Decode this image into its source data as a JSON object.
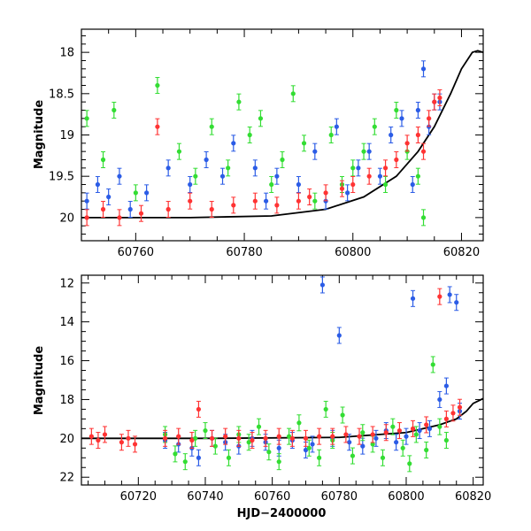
{
  "chart_data": [
    {
      "type": "scatter",
      "title": "",
      "xlabel": "",
      "ylabel": "Magnitude",
      "xlim": [
        60750,
        60824
      ],
      "ylim": [
        20.28,
        17.72
      ],
      "y_inverted": true,
      "grid": false,
      "xticks_major": [
        60760,
        60780,
        60800,
        60820
      ],
      "xticks_minor_step": 5,
      "yticks_major": [
        18,
        18.5,
        19,
        19.5,
        20
      ],
      "yticks_minor_step": 0.1,
      "model_curve": {
        "color": "#000000",
        "x": [
          60750,
          60770,
          60785,
          60795,
          60802,
          60808,
          60812,
          60815,
          60818,
          60820,
          60822,
          60823,
          60824
        ],
        "y": [
          20.0,
          20.0,
          19.98,
          19.9,
          19.75,
          19.5,
          19.2,
          18.9,
          18.5,
          18.2,
          18.0,
          17.98,
          18.0
        ]
      },
      "series": [
        {
          "color": "#2b5ce6",
          "points": [
            [
              60751,
              19.8
            ],
            [
              60753,
              19.6
            ],
            [
              60755,
              19.75
            ],
            [
              60757,
              19.5
            ],
            [
              60759,
              19.9
            ],
            [
              60762,
              19.7
            ],
            [
              60766,
              19.4
            ],
            [
              60770,
              19.6
            ],
            [
              60773,
              19.3
            ],
            [
              60776,
              19.5
            ],
            [
              60778,
              19.1
            ],
            [
              60782,
              19.4
            ],
            [
              60784,
              19.8
            ],
            [
              60786,
              19.5
            ],
            [
              60790,
              19.6
            ],
            [
              60793,
              19.2
            ],
            [
              60795,
              19.8
            ],
            [
              60797,
              18.9
            ],
            [
              60799,
              19.7
            ],
            [
              60801,
              19.4
            ],
            [
              60803,
              19.2
            ],
            [
              60805,
              19.5
            ],
            [
              60807,
              19.0
            ],
            [
              60809,
              18.8
            ],
            [
              60811,
              19.6
            ],
            [
              60812,
              18.7
            ],
            [
              60813,
              18.2
            ],
            [
              60814,
              18.9
            ],
            [
              60815,
              18.6
            ],
            [
              60816,
              18.6
            ]
          ]
        },
        {
          "color": "#33dd33",
          "points": [
            [
              60751,
              18.8
            ],
            [
              60754,
              19.3
            ],
            [
              60756,
              18.7
            ],
            [
              60760,
              19.7
            ],
            [
              60764,
              18.4
            ],
            [
              60768,
              19.2
            ],
            [
              60771,
              19.5
            ],
            [
              60774,
              18.9
            ],
            [
              60777,
              19.4
            ],
            [
              60779,
              18.6
            ],
            [
              60781,
              19.0
            ],
            [
              60783,
              18.8
            ],
            [
              60785,
              19.6
            ],
            [
              60787,
              19.3
            ],
            [
              60789,
              18.5
            ],
            [
              60791,
              19.1
            ],
            [
              60793,
              19.8
            ],
            [
              60796,
              19.0
            ],
            [
              60798,
              19.6
            ],
            [
              60800,
              19.4
            ],
            [
              60802,
              19.2
            ],
            [
              60804,
              18.9
            ],
            [
              60806,
              19.6
            ],
            [
              60808,
              18.7
            ],
            [
              60810,
              19.2
            ],
            [
              60812,
              19.5
            ],
            [
              60813,
              20.0
            ]
          ]
        },
        {
          "color": "#ff3333",
          "points": [
            [
              60751,
              20.0
            ],
            [
              60754,
              19.9
            ],
            [
              60757,
              20.0
            ],
            [
              60761,
              19.95
            ],
            [
              60764,
              18.9
            ],
            [
              60766,
              19.9
            ],
            [
              60770,
              19.8
            ],
            [
              60774,
              19.9
            ],
            [
              60778,
              19.85
            ],
            [
              60782,
              19.8
            ],
            [
              60786,
              19.85
            ],
            [
              60790,
              19.8
            ],
            [
              60792,
              19.75
            ],
            [
              60795,
              19.7
            ],
            [
              60798,
              19.65
            ],
            [
              60800,
              19.6
            ],
            [
              60803,
              19.5
            ],
            [
              60806,
              19.4
            ],
            [
              60808,
              19.3
            ],
            [
              60810,
              19.1
            ],
            [
              60812,
              19.0
            ],
            [
              60813,
              19.2
            ],
            [
              60814,
              18.8
            ],
            [
              60815,
              18.6
            ],
            [
              60816,
              18.55
            ]
          ]
        }
      ]
    },
    {
      "type": "scatter",
      "title": "",
      "xlabel": "HJD−2400000",
      "ylabel": "Magnitude",
      "xlim": [
        60703,
        60823
      ],
      "ylim": [
        22.4,
        11.6
      ],
      "y_inverted": true,
      "grid": false,
      "xticks_major": [
        60720,
        60740,
        60760,
        60780,
        60800,
        60820
      ],
      "xticks_minor_step": 5,
      "yticks_major": [
        12,
        14,
        16,
        18,
        20,
        22
      ],
      "yticks_minor_step": 0.5,
      "model_curve": {
        "color": "#000000",
        "x": [
          60703,
          60740,
          60780,
          60800,
          60810,
          60815,
          60818,
          60820,
          60823
        ],
        "y": [
          20.0,
          20.0,
          19.95,
          19.7,
          19.3,
          19.0,
          18.6,
          18.2,
          17.95
        ]
      },
      "series": [
        {
          "color": "#2b5ce6",
          "points": [
            [
              60728,
              20.1
            ],
            [
              60732,
              20.3
            ],
            [
              60736,
              20.5
            ],
            [
              60738,
              21.0
            ],
            [
              60742,
              20.0
            ],
            [
              60746,
              20.2
            ],
            [
              60750,
              20.4
            ],
            [
              60754,
              20.0
            ],
            [
              60758,
              20.2
            ],
            [
              60762,
              20.5
            ],
            [
              60766,
              20.1
            ],
            [
              60770,
              20.6
            ],
            [
              60772,
              20.3
            ],
            [
              60775,
              12.1
            ],
            [
              60778,
              20.0
            ],
            [
              60780,
              14.7
            ],
            [
              60783,
              20.2
            ],
            [
              60787,
              20.4
            ],
            [
              60791,
              20.0
            ],
            [
              60794,
              19.6
            ],
            [
              60797,
              20.2
            ],
            [
              60800,
              19.9
            ],
            [
              60802,
              12.8
            ],
            [
              60804,
              19.6
            ],
            [
              60807,
              19.5
            ],
            [
              60810,
              18.0
            ],
            [
              60812,
              17.3
            ],
            [
              60813,
              12.6
            ],
            [
              60815,
              13.0
            ],
            [
              60816,
              18.6
            ]
          ]
        },
        {
          "color": "#33dd33",
          "points": [
            [
              60728,
              19.8
            ],
            [
              60731,
              20.8
            ],
            [
              60734,
              21.2
            ],
            [
              60737,
              20.0
            ],
            [
              60740,
              19.6
            ],
            [
              60743,
              20.4
            ],
            [
              60747,
              21.0
            ],
            [
              60750,
              19.8
            ],
            [
              60753,
              20.2
            ],
            [
              60756,
              19.4
            ],
            [
              60759,
              20.7
            ],
            [
              60762,
              21.2
            ],
            [
              60765,
              19.9
            ],
            [
              60768,
              19.2
            ],
            [
              60771,
              20.5
            ],
            [
              60774,
              21.0
            ],
            [
              60776,
              18.5
            ],
            [
              60778,
              20.1
            ],
            [
              60781,
              18.8
            ],
            [
              60784,
              20.9
            ],
            [
              60787,
              19.7
            ],
            [
              60790,
              20.3
            ],
            [
              60793,
              21.0
            ],
            [
              60796,
              19.4
            ],
            [
              60799,
              20.5
            ],
            [
              60801,
              21.3
            ],
            [
              60803,
              19.8
            ],
            [
              60806,
              20.6
            ],
            [
              60808,
              16.2
            ],
            [
              60810,
              19.4
            ],
            [
              60812,
              20.1
            ]
          ]
        },
        {
          "color": "#ff3333",
          "points": [
            [
              60706,
              19.9
            ],
            [
              60708,
              20.1
            ],
            [
              60710,
              19.8
            ],
            [
              60715,
              20.2
            ],
            [
              60717,
              20.0
            ],
            [
              60719,
              20.3
            ],
            [
              60728,
              20.0
            ],
            [
              60732,
              19.9
            ],
            [
              60736,
              20.1
            ],
            [
              60738,
              18.5
            ],
            [
              60742,
              20.0
            ],
            [
              60746,
              19.9
            ],
            [
              60750,
              20.0
            ],
            [
              60754,
              20.1
            ],
            [
              60758,
              20.0
            ],
            [
              60762,
              19.9
            ],
            [
              60766,
              20.0
            ],
            [
              60770,
              20.0
            ],
            [
              60774,
              19.9
            ],
            [
              60778,
              19.9
            ],
            [
              60782,
              19.8
            ],
            [
              60786,
              19.9
            ],
            [
              60790,
              19.8
            ],
            [
              60794,
              19.7
            ],
            [
              60798,
              19.6
            ],
            [
              60802,
              19.5
            ],
            [
              60806,
              19.3
            ],
            [
              60810,
              12.7
            ],
            [
              60812,
              19.0
            ],
            [
              60814,
              18.7
            ],
            [
              60816,
              18.4
            ]
          ]
        }
      ]
    }
  ]
}
